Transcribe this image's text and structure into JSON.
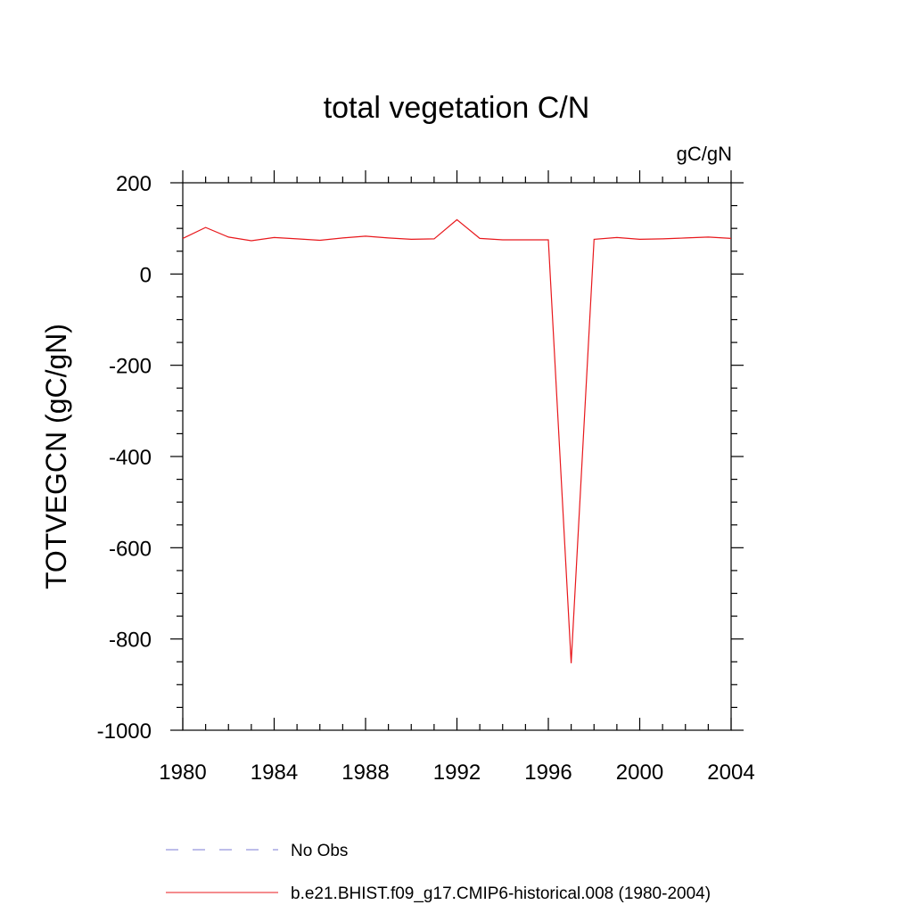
{
  "chart_data": {
    "type": "line",
    "title": "total vegetation C/N",
    "units_label": "gC/gN",
    "ylabel": "TOTVEGCN  (gC/gN)",
    "xlabel": "",
    "xlim": [
      1980,
      2004
    ],
    "ylim": [
      -1000,
      200
    ],
    "x_ticks": [
      1980,
      1984,
      1988,
      1992,
      1996,
      2000,
      2004
    ],
    "y_ticks": [
      200,
      0,
      -200,
      -400,
      -600,
      -800,
      -1000
    ],
    "x_tick_labels": [
      "1980",
      "1984",
      "1988",
      "1992",
      "1996",
      "2000",
      "2004"
    ],
    "y_tick_labels": [
      "200",
      "0",
      "-200",
      "-400",
      "-600",
      "-800",
      "-1000"
    ],
    "grid": false,
    "legend_position": "bottom",
    "series": [
      {
        "name": "No Obs",
        "color": "#7b7bd6",
        "style": "dashed",
        "x": [],
        "y": []
      },
      {
        "name": "b.e21.BHIST.f09_g17.CMIP6-historical.008 (1980-2004)",
        "color": "#e8181c",
        "style": "solid",
        "x": [
          1980,
          1981,
          1982,
          1983,
          1984,
          1985,
          1986,
          1987,
          1988,
          1989,
          1990,
          1991,
          1992,
          1993,
          1994,
          1995,
          1996,
          1997,
          1998,
          1999,
          2000,
          2001,
          2002,
          2003,
          2004
        ],
        "y": [
          78,
          102,
          81,
          73,
          80,
          77,
          74,
          79,
          83,
          79,
          76,
          77,
          119,
          78,
          75,
          75,
          75,
          -853,
          76,
          80,
          76,
          77,
          79,
          81,
          78
        ]
      }
    ]
  }
}
